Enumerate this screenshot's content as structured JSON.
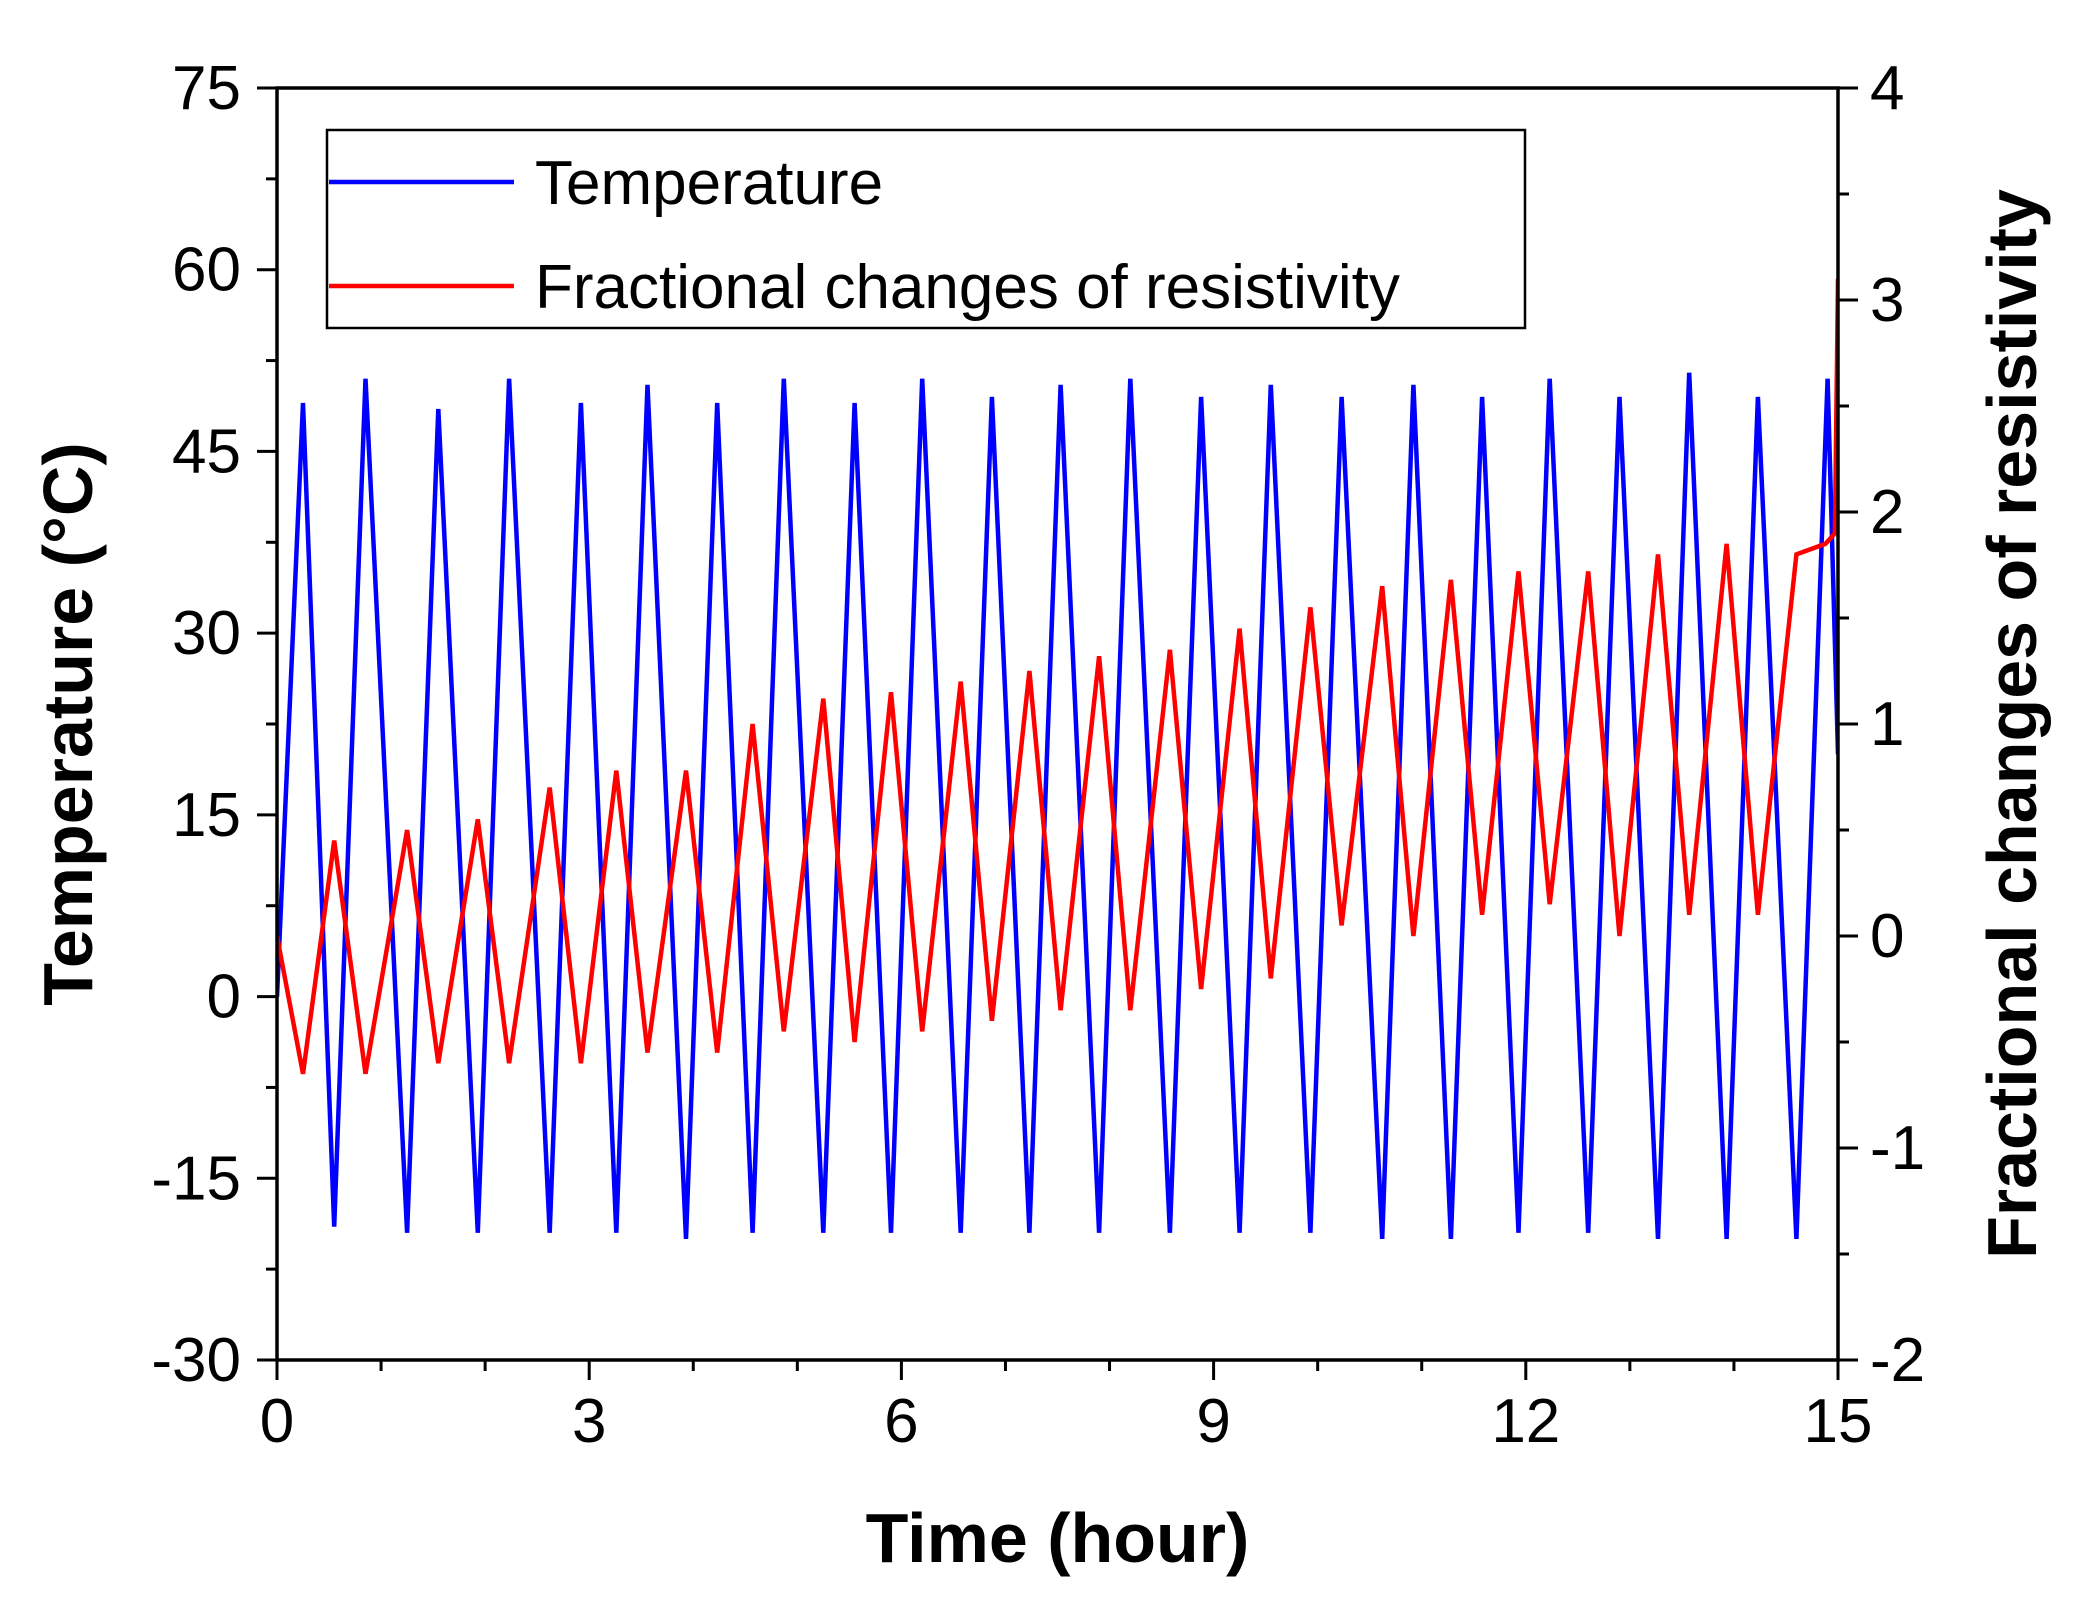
{
  "chart_data": {
    "type": "line",
    "title": "",
    "xlabel": "Time (hour)",
    "ylabel_left": "Temperature (°C)",
    "ylabel_right": "Fractional changes of resistivity",
    "xlim": [
      0,
      15
    ],
    "ylim_left": [
      -30,
      75
    ],
    "ylim_right": [
      -2,
      4
    ],
    "xticks": [
      0,
      3,
      6,
      9,
      12,
      15
    ],
    "yticks_left": [
      -30,
      -15,
      0,
      15,
      30,
      45,
      60,
      75
    ],
    "yticks_right": [
      -2,
      -1,
      0,
      1,
      2,
      3,
      4
    ],
    "legend_position": "top-left",
    "grid": false,
    "series": [
      {
        "name": "Temperature",
        "axis": "left",
        "color": "#0000ff",
        "x": [
          0,
          0.25,
          0.55,
          0.85,
          1.25,
          1.55,
          1.93,
          2.23,
          2.62,
          2.92,
          3.26,
          3.56,
          3.93,
          4.23,
          4.57,
          4.87,
          5.25,
          5.55,
          5.9,
          6.2,
          6.57,
          6.87,
          7.23,
          7.53,
          7.9,
          8.2,
          8.58,
          8.88,
          9.25,
          9.55,
          9.93,
          10.23,
          10.62,
          10.92,
          11.28,
          11.58,
          11.93,
          12.23,
          12.6,
          12.9,
          13.27,
          13.57,
          13.93,
          14.23,
          14.6,
          14.9,
          15.0
        ],
        "values": [
          0,
          49,
          -19,
          51,
          -19.5,
          48.5,
          -19.5,
          51,
          -19.5,
          49,
          -19.5,
          50.5,
          -20,
          49,
          -19.5,
          51,
          -19.5,
          49,
          -19.5,
          51,
          -19.5,
          49.5,
          -19.5,
          50.5,
          -19.5,
          51,
          -19.5,
          49.5,
          -19.5,
          50.5,
          -19.5,
          49.5,
          -20,
          50.5,
          -20,
          49.5,
          -19.5,
          51,
          -19.5,
          49.5,
          -20,
          51.5,
          -20,
          49.5,
          -20,
          51,
          20
        ]
      },
      {
        "name": "Fractional changes of resistivity",
        "axis": "right",
        "color": "#ff0000",
        "x": [
          0,
          0.25,
          0.55,
          0.85,
          1.25,
          1.55,
          1.93,
          2.23,
          2.62,
          2.92,
          3.26,
          3.56,
          3.93,
          4.23,
          4.57,
          4.87,
          5.25,
          5.55,
          5.9,
          6.2,
          6.57,
          6.87,
          7.23,
          7.53,
          7.9,
          8.2,
          8.58,
          8.88,
          9.25,
          9.55,
          9.93,
          10.23,
          10.62,
          10.92,
          11.28,
          11.58,
          11.93,
          12.23,
          12.6,
          12.9,
          13.27,
          13.57,
          13.93,
          14.23,
          14.6,
          14.88,
          14.97,
          15.0
        ],
        "values": [
          0,
          -0.65,
          0.45,
          -0.65,
          0.5,
          -0.6,
          0.55,
          -0.6,
          0.7,
          -0.6,
          0.78,
          -0.55,
          0.78,
          -0.55,
          1.0,
          -0.45,
          1.12,
          -0.5,
          1.15,
          -0.45,
          1.2,
          -0.4,
          1.25,
          -0.35,
          1.32,
          -0.35,
          1.35,
          -0.25,
          1.45,
          -0.2,
          1.55,
          0.05,
          1.65,
          0.0,
          1.68,
          0.1,
          1.72,
          0.15,
          1.72,
          0.0,
          1.8,
          0.1,
          1.85,
          0.1,
          1.8,
          1.85,
          1.9,
          3.1
        ]
      }
    ]
  }
}
